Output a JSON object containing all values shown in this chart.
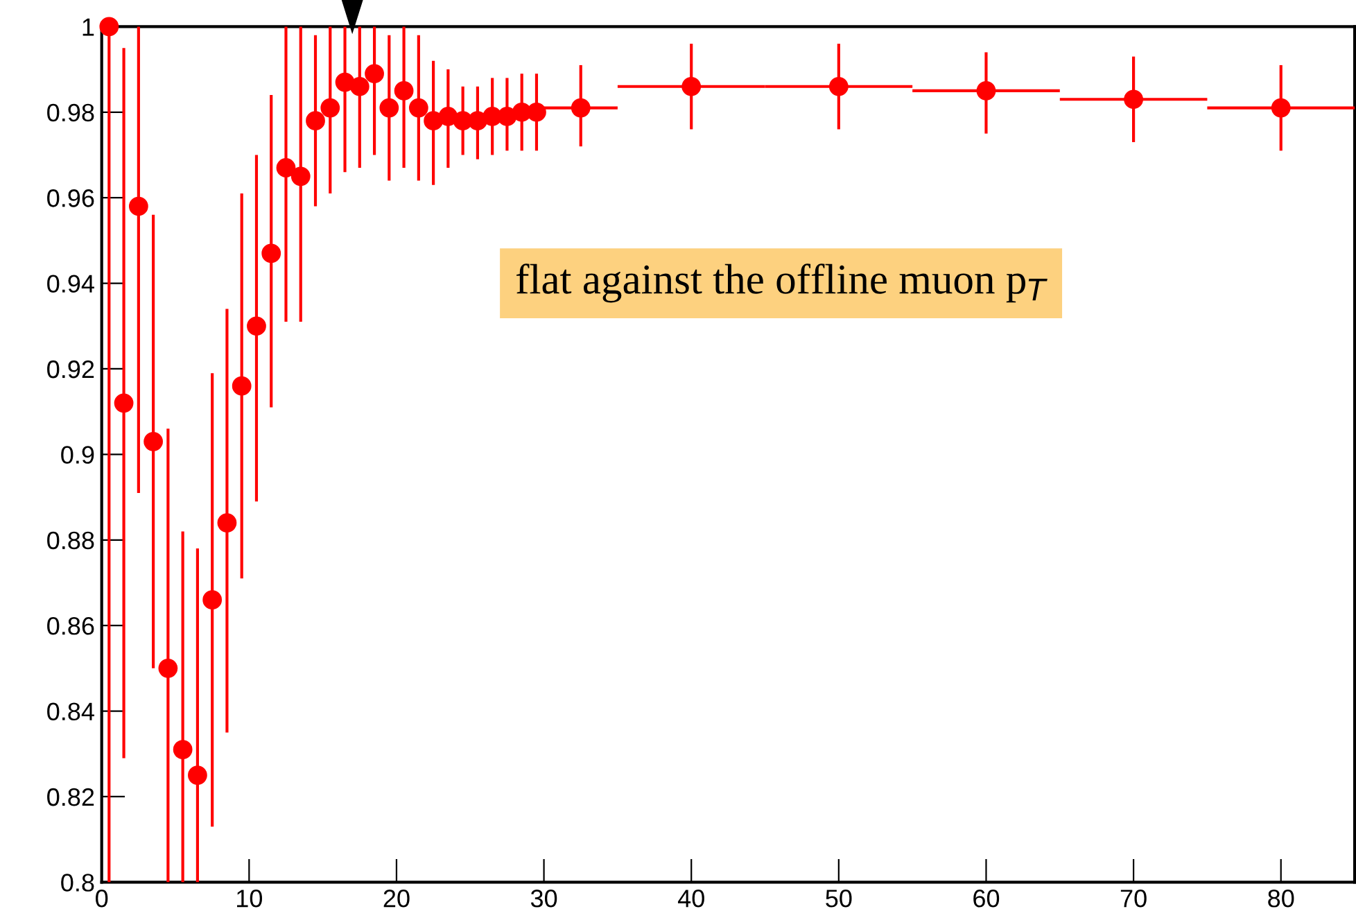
{
  "chart_data": {
    "type": "scatter",
    "x": [
      0.5,
      1.5,
      2.5,
      3.5,
      4.5,
      5.5,
      6.5,
      7.5,
      8.5,
      9.5,
      10.5,
      11.5,
      12.5,
      13.5,
      14.5,
      15.5,
      16.5,
      17.5,
      18.5,
      19.5,
      20.5,
      21.5,
      22.5,
      23.5,
      24.5,
      25.5,
      26.5,
      27.5,
      28.5,
      29.5,
      32.5,
      40,
      50,
      60,
      70,
      80
    ],
    "series": [
      {
        "color": "#ff0000",
        "values": [
          1.0,
          0.912,
          0.958,
          0.903,
          0.85,
          0.831,
          0.825,
          0.866,
          0.884,
          0.916,
          0.93,
          0.947,
          0.967,
          0.965,
          0.978,
          0.981,
          0.987,
          0.986,
          0.989,
          0.981,
          0.985,
          0.981,
          0.978,
          0.979,
          0.978,
          0.978,
          0.979,
          0.979,
          0.98,
          0.98,
          0.981,
          0.986,
          0.986,
          0.985,
          0.983,
          0.981
        ],
        "errors": [
          [
            0.8,
            1.0
          ],
          [
            0.829,
            0.995
          ],
          [
            0.891,
            1.0
          ],
          [
            0.85,
            0.956
          ],
          [
            0.8,
            0.906
          ],
          [
            0.8,
            0.882
          ],
          [
            0.8,
            0.878
          ],
          [
            0.813,
            0.919
          ],
          [
            0.835,
            0.934
          ],
          [
            0.871,
            0.961
          ],
          [
            0.889,
            0.97
          ],
          [
            0.911,
            0.984
          ],
          [
            0.931,
            1.0
          ],
          [
            0.931,
            1.0
          ],
          [
            0.958,
            0.998
          ],
          [
            0.961,
            1.0
          ],
          [
            0.966,
            1.0
          ],
          [
            0.967,
            1.0
          ],
          [
            0.97,
            1.0
          ],
          [
            0.964,
            0.998
          ],
          [
            0.967,
            1.0
          ],
          [
            0.964,
            0.998
          ],
          [
            0.963,
            0.992
          ],
          [
            0.967,
            0.99
          ],
          [
            0.97,
            0.986
          ],
          [
            0.969,
            0.986
          ],
          [
            0.97,
            0.988
          ],
          [
            0.971,
            0.988
          ],
          [
            0.971,
            0.989
          ],
          [
            0.971,
            0.989
          ],
          [
            0.972,
            0.991
          ],
          [
            0.976,
            0.996
          ],
          [
            0.976,
            0.996
          ],
          [
            0.975,
            0.994
          ],
          [
            0.973,
            0.993
          ],
          [
            0.971,
            0.991
          ]
        ],
        "xerrors": [
          null,
          null,
          null,
          null,
          null,
          null,
          null,
          null,
          null,
          null,
          null,
          null,
          null,
          null,
          null,
          null,
          null,
          null,
          null,
          null,
          null,
          null,
          null,
          null,
          null,
          null,
          null,
          null,
          null,
          null,
          2.5,
          5,
          5,
          5,
          5,
          5
        ]
      }
    ],
    "xlim": [
      0,
      85
    ],
    "ylim": [
      0.8,
      1.0
    ],
    "xticks": [
      0,
      10,
      20,
      30,
      40,
      50,
      60,
      70,
      80
    ],
    "yticks": [
      0.8,
      0.82,
      0.84,
      0.86,
      0.88,
      0.9,
      0.92,
      0.94,
      0.96,
      0.98,
      1
    ],
    "marker": "circle",
    "grid": false,
    "annotations": [
      "flat against the offline muon p$_{T}$"
    ]
  }
}
